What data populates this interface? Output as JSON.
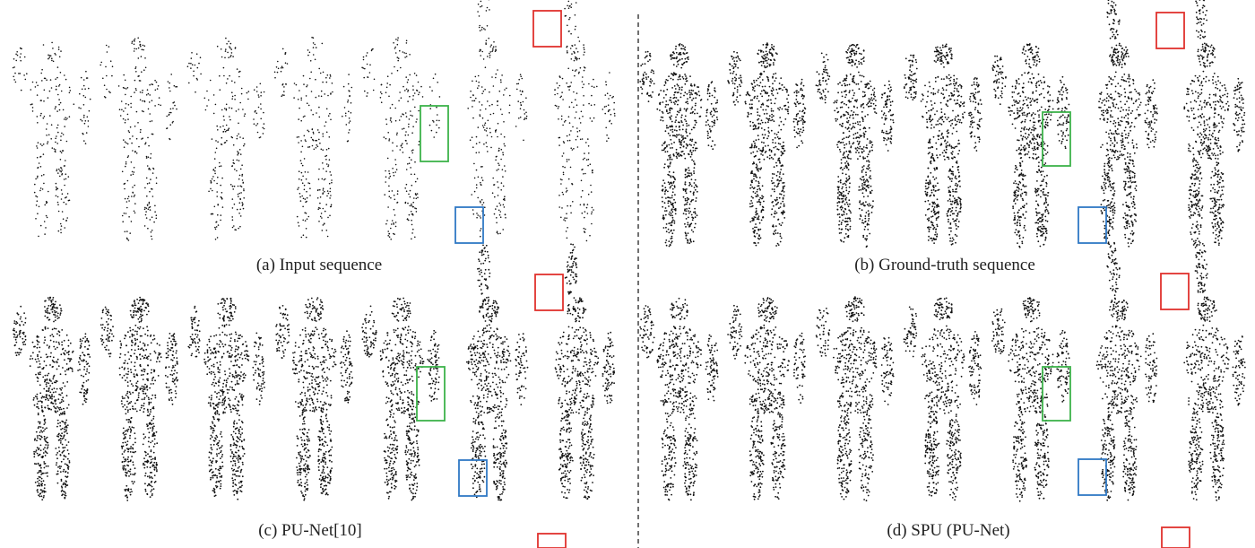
{
  "figure": {
    "panels": [
      {
        "id": "a",
        "caption": "(a) Input sequence",
        "density": "sparse"
      },
      {
        "id": "b",
        "caption": "(b) Ground-truth sequence",
        "density": "dense"
      },
      {
        "id": "c",
        "caption": "(c) PU-Net[10]",
        "density": "dense"
      },
      {
        "id": "d",
        "caption": "(d) SPU (PU-Net)",
        "density": "dense"
      }
    ],
    "frames_per_panel": 7,
    "highlight_colors": {
      "red": "#e0322e",
      "green": "#3cb24a",
      "blue": "#2f78c4"
    },
    "point_color": "#111111",
    "divider_style": "dashed"
  }
}
